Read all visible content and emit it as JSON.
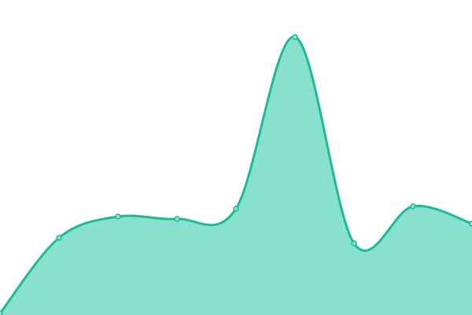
{
  "chart_data": {
    "type": "area",
    "title": "",
    "xlabel": "",
    "ylabel": "",
    "x": [
      0,
      1,
      2,
      3,
      4,
      5,
      6,
      7,
      8
    ],
    "values": [
      2,
      98,
      125,
      122,
      135,
      353,
      91,
      138,
      116
    ],
    "ylim": [
      0,
      400
    ],
    "xlim": [
      0,
      8
    ],
    "grid": false,
    "legend": "none",
    "smooth": true,
    "colors": {
      "line": "#1fba94",
      "fill": "#88e0cf",
      "marker_fill": "#88e0cf"
    }
  }
}
